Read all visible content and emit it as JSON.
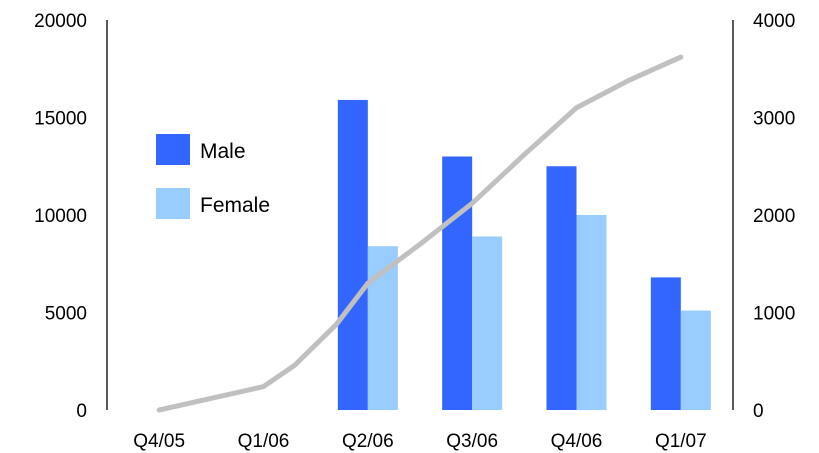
{
  "chart_data": {
    "type": "bar",
    "categories": [
      "Q4/05",
      "Q1/06",
      "Q2/06",
      "Q3/06",
      "Q4/06",
      "Q1/07"
    ],
    "series": [
      {
        "name": "Male",
        "type": "bar",
        "axis": "left",
        "color": "#3366ff",
        "values": [
          0,
          0,
          15900,
          13000,
          12500,
          6800
        ]
      },
      {
        "name": "Female",
        "type": "bar",
        "axis": "left",
        "color": "#99ccff",
        "values": [
          0,
          0,
          8400,
          8900,
          10000,
          5100
        ]
      },
      {
        "type": "line",
        "axis": "right",
        "color": "#c0c0c0",
        "x": [
          0,
          0.5,
          1,
          1.3,
          1.7,
          2,
          2.5,
          3,
          3.5,
          4,
          4.5,
          5
        ],
        "values": [
          0,
          120,
          240,
          460,
          880,
          1300,
          1700,
          2120,
          2620,
          3100,
          3380,
          3620
        ]
      }
    ],
    "y_left": {
      "ylim": [
        0,
        20000
      ],
      "ticks": [
        "0",
        "5000",
        "10000",
        "15000",
        "20000"
      ]
    },
    "y_right": {
      "ylim": [
        0,
        4000
      ],
      "ticks": [
        "0",
        "1000",
        "2000",
        "3000",
        "4000"
      ]
    },
    "legend": {
      "placement": "upper-left inside plot",
      "entries": [
        "Male",
        "Female"
      ]
    },
    "title": "",
    "xlabel": "",
    "ylabel": "",
    "grid": false
  }
}
